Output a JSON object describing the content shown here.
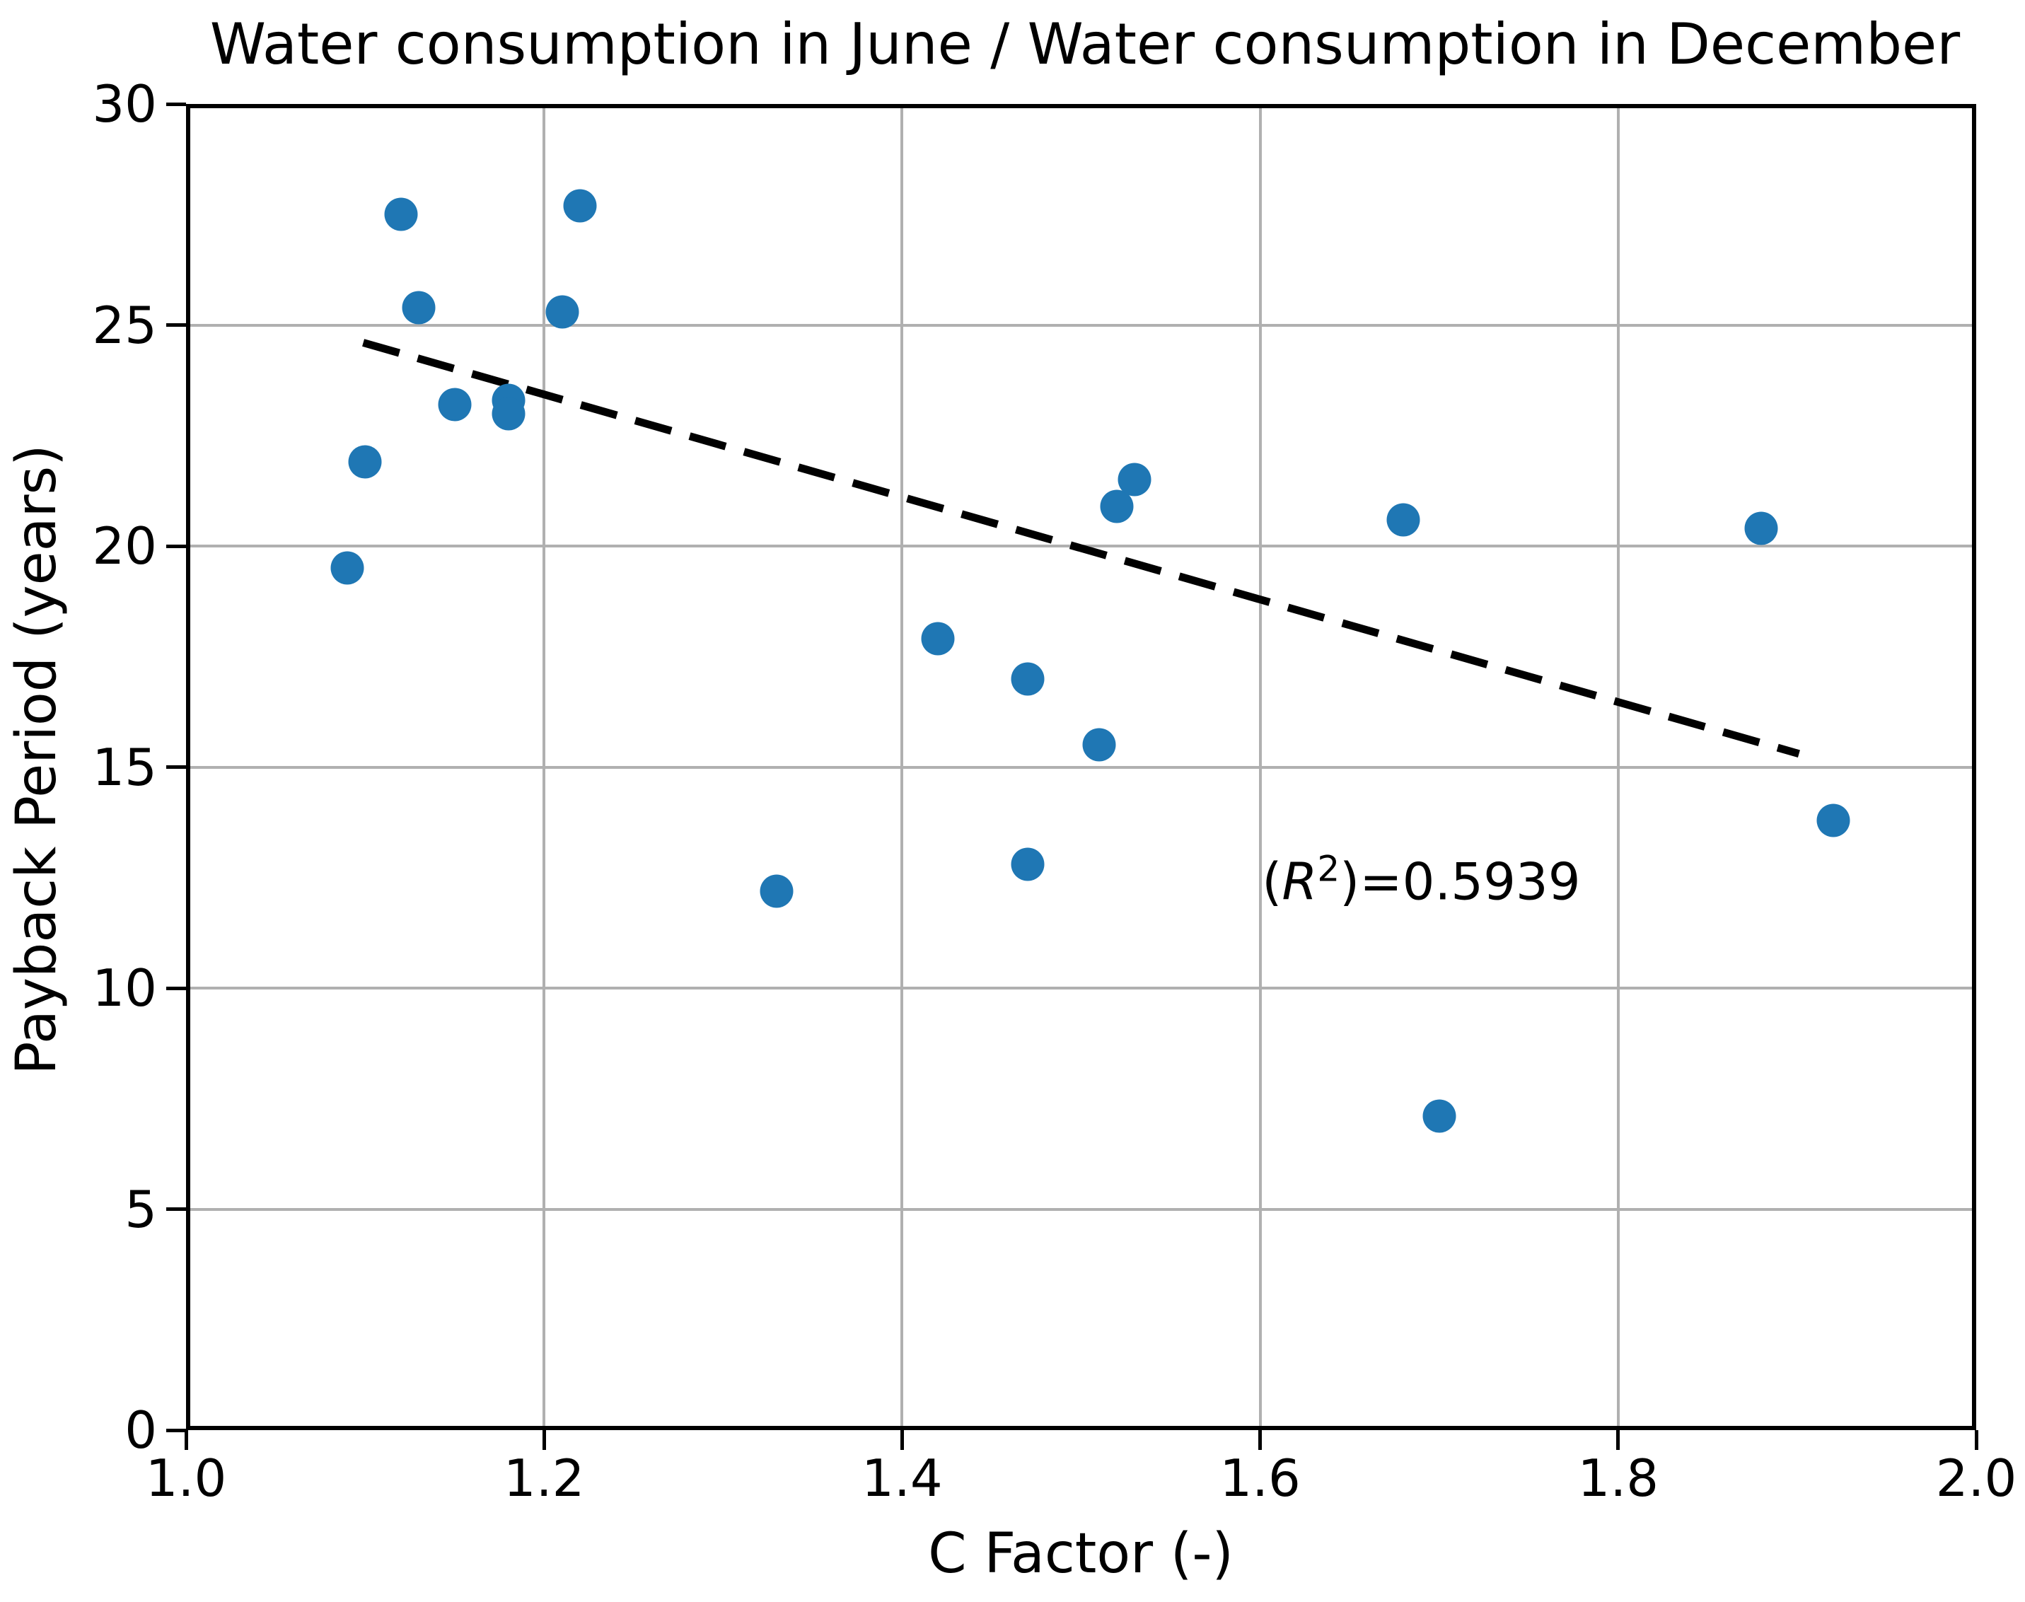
{
  "figure": {
    "background": "#ffffff"
  },
  "chart_data": {
    "type": "scatter",
    "title": "Water consumption in June / Water consumption in December",
    "xlabel": "C Factor (-)",
    "ylabel": "Payback Period (years)",
    "xlim": [
      1.0,
      2.0
    ],
    "ylim": [
      0,
      30
    ],
    "grid": true,
    "x_ticks": [
      {
        "value": 1.0,
        "label": "1.0"
      },
      {
        "value": 1.2,
        "label": "1.2"
      },
      {
        "value": 1.4,
        "label": "1.4"
      },
      {
        "value": 1.6,
        "label": "1.6"
      },
      {
        "value": 1.8,
        "label": "1.8"
      },
      {
        "value": 2.0,
        "label": "2.0"
      }
    ],
    "y_ticks": [
      {
        "value": 0,
        "label": "0"
      },
      {
        "value": 5,
        "label": "5"
      },
      {
        "value": 10,
        "label": "10"
      },
      {
        "value": 15,
        "label": "15"
      },
      {
        "value": 20,
        "label": "20"
      },
      {
        "value": 25,
        "label": "25"
      },
      {
        "value": 30,
        "label": "30"
      }
    ],
    "points": [
      {
        "x": 1.09,
        "y": 19.5
      },
      {
        "x": 1.1,
        "y": 21.9
      },
      {
        "x": 1.12,
        "y": 27.5
      },
      {
        "x": 1.13,
        "y": 25.4
      },
      {
        "x": 1.15,
        "y": 23.2
      },
      {
        "x": 1.18,
        "y": 23.3
      },
      {
        "x": 1.18,
        "y": 23.0
      },
      {
        "x": 1.21,
        "y": 25.3
      },
      {
        "x": 1.22,
        "y": 27.7
      },
      {
        "x": 1.33,
        "y": 12.2
      },
      {
        "x": 1.42,
        "y": 17.9
      },
      {
        "x": 1.47,
        "y": 17.0
      },
      {
        "x": 1.47,
        "y": 12.8
      },
      {
        "x": 1.51,
        "y": 15.5
      },
      {
        "x": 1.52,
        "y": 20.9
      },
      {
        "x": 1.53,
        "y": 21.5
      },
      {
        "x": 1.68,
        "y": 20.6
      },
      {
        "x": 1.7,
        "y": 7.1
      },
      {
        "x": 1.88,
        "y": 20.4
      },
      {
        "x": 1.92,
        "y": 13.8
      }
    ],
    "trendline": {
      "style": "dashed",
      "x1": 1.099,
      "y1": 24.6,
      "x2": 1.901,
      "y2": 15.3
    },
    "annotation": {
      "text": "(R²)=0.5939",
      "open": "(",
      "r_symbol": "R",
      "exponent": "2",
      "rest": ")=0.5939",
      "x": 1.69,
      "y": 12.45
    },
    "colors": {
      "marker": "#1f77b4",
      "trend": "#000000",
      "grid": "#b0b0b0",
      "spine": "#000000",
      "text": "#000000"
    }
  }
}
